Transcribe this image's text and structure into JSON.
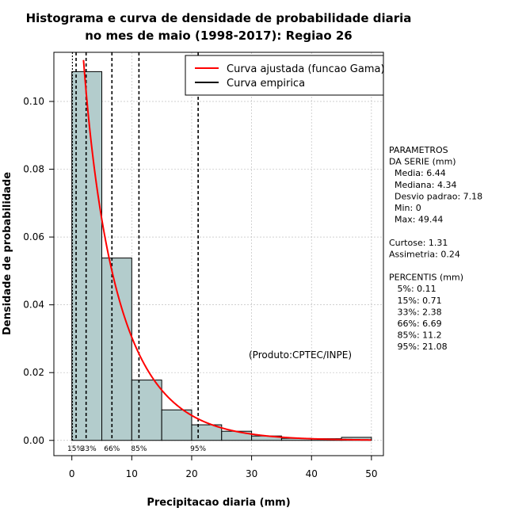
{
  "chart_data": {
    "type": "bar",
    "title_line1": "Histograma e curva de densidade de probabilidade diaria",
    "title_line2": "no mes de maio (1998-2017): Regiao 26",
    "xlabel": "Precipitacao diaria (mm)",
    "ylabel": "Densidade de probabilidade",
    "xlim": [
      -3,
      52
    ],
    "ylim": [
      -0.0045,
      0.1145
    ],
    "x_ticks": [
      0,
      10,
      20,
      30,
      40,
      50
    ],
    "y_ticks": [
      0.0,
      0.02,
      0.04,
      0.06,
      0.08,
      0.1
    ],
    "y_tick_labels": [
      "0.00",
      "0.02",
      "0.04",
      "0.06",
      "0.08",
      "0.10"
    ],
    "bins": [
      {
        "from": 0,
        "to": 5,
        "density": 0.1088
      },
      {
        "from": 5,
        "to": 10,
        "density": 0.0538
      },
      {
        "from": 10,
        "to": 15,
        "density": 0.0178
      },
      {
        "from": 15,
        "to": 20,
        "density": 0.009
      },
      {
        "from": 20,
        "to": 25,
        "density": 0.0046
      },
      {
        "from": 25,
        "to": 30,
        "density": 0.0027
      },
      {
        "from": 30,
        "to": 35,
        "density": 0.0013
      },
      {
        "from": 35,
        "to": 40,
        "density": 0.0006
      },
      {
        "from": 40,
        "to": 45,
        "density": 0.0005
      },
      {
        "from": 45,
        "to": 50,
        "density": 0.0009
      }
    ],
    "gamma_fit": {
      "shape": 0.85,
      "scale": 7.6
    },
    "percentile_lines": [
      {
        "label": "15%",
        "value": 0.71,
        "show_label": true
      },
      {
        "label": "33%",
        "value": 2.38,
        "show_label": true
      },
      {
        "label": "66%",
        "value": 6.69,
        "show_label": true
      },
      {
        "label": "85%",
        "value": 11.2,
        "show_label": true
      },
      {
        "label": "95%",
        "value": 21.08,
        "show_label": true
      },
      {
        "label": "",
        "value": 0.11,
        "show_label": false
      }
    ],
    "legend": [
      {
        "label": "Curva ajustada (funcao Gama)",
        "color": "#ff0000"
      },
      {
        "label": "Curva empirica",
        "color": "#000000"
      }
    ],
    "annotation": "(Produto:CPTEC/INPE)",
    "colors": {
      "bar_fill": "#b3cccc",
      "curve": "#ff0000",
      "grid": "#c0c0c0"
    }
  },
  "side_panel": {
    "lines": [
      "PARAMETROS",
      "DA SERIE (mm)",
      "  Media: 6.44",
      "  Mediana: 4.34",
      "  Desvio padrao: 7.18",
      "  Min: 0",
      "  Max: 49.44",
      "",
      "Curtose: 1.31",
      "Assimetria: 0.24",
      "",
      "PERCENTIS (mm)",
      "   5%: 0.11",
      "   15%: 0.71",
      "   33%: 2.38",
      "   66%: 6.69",
      "   85%: 11.2",
      "   95%: 21.08"
    ]
  }
}
